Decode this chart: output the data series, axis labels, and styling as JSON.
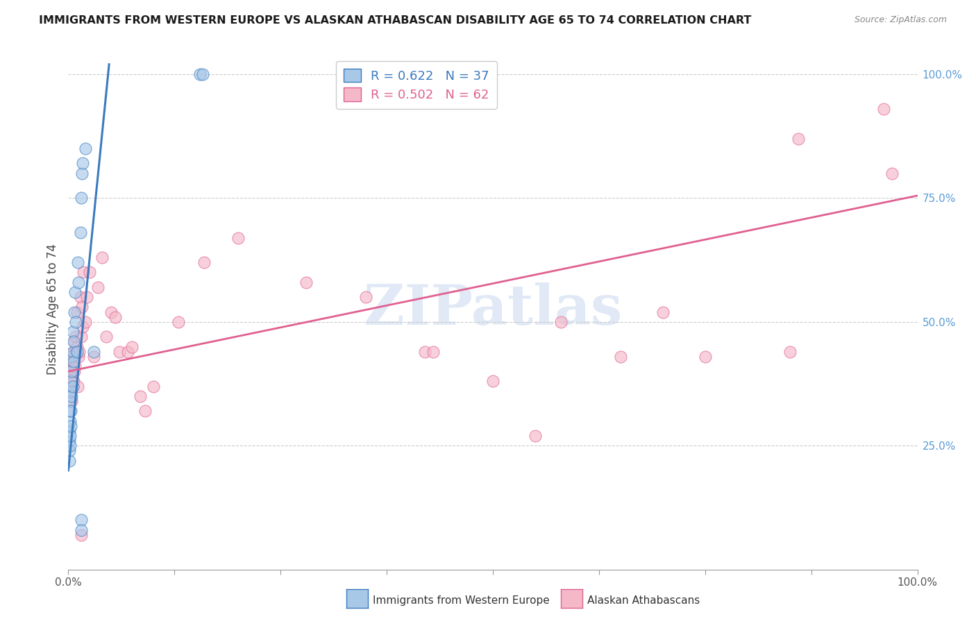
{
  "title": "IMMIGRANTS FROM WESTERN EUROPE VS ALASKAN ATHABASCAN DISABILITY AGE 65 TO 74 CORRELATION CHART",
  "source": "Source: ZipAtlas.com",
  "ylabel": "Disability Age 65 to 74",
  "legend1_label": "R = 0.622   N = 37",
  "legend2_label": "R = 0.502   N = 62",
  "legend1_fill": "#a8c8e8",
  "legend2_fill": "#f4b8c8",
  "line1_color": "#3a7abf",
  "line2_color": "#e06090",
  "watermark": "ZIPatlas",
  "blue_dots": [
    [
      0.001,
      0.22
    ],
    [
      0.001,
      0.24
    ],
    [
      0.001,
      0.26
    ],
    [
      0.001,
      0.28
    ],
    [
      0.002,
      0.25
    ],
    [
      0.002,
      0.27
    ],
    [
      0.002,
      0.3
    ],
    [
      0.002,
      0.32
    ],
    [
      0.002,
      0.34
    ],
    [
      0.003,
      0.29
    ],
    [
      0.003,
      0.32
    ],
    [
      0.003,
      0.36
    ],
    [
      0.003,
      0.38
    ],
    [
      0.004,
      0.35
    ],
    [
      0.004,
      0.4
    ],
    [
      0.004,
      0.43
    ],
    [
      0.005,
      0.37
    ],
    [
      0.005,
      0.44
    ],
    [
      0.005,
      0.48
    ],
    [
      0.006,
      0.42
    ],
    [
      0.006,
      0.46
    ],
    [
      0.007,
      0.52
    ],
    [
      0.008,
      0.56
    ],
    [
      0.009,
      0.5
    ],
    [
      0.01,
      0.44
    ],
    [
      0.011,
      0.62
    ],
    [
      0.012,
      0.58
    ],
    [
      0.014,
      0.68
    ],
    [
      0.015,
      0.75
    ],
    [
      0.016,
      0.8
    ],
    [
      0.017,
      0.82
    ],
    [
      0.02,
      0.85
    ],
    [
      0.015,
      0.1
    ],
    [
      0.015,
      0.08
    ],
    [
      0.155,
      1.0
    ],
    [
      0.158,
      1.0
    ],
    [
      0.03,
      0.44
    ]
  ],
  "pink_dots": [
    [
      0.002,
      0.38
    ],
    [
      0.002,
      0.4
    ],
    [
      0.003,
      0.36
    ],
    [
      0.003,
      0.41
    ],
    [
      0.003,
      0.43
    ],
    [
      0.004,
      0.34
    ],
    [
      0.004,
      0.39
    ],
    [
      0.004,
      0.41
    ],
    [
      0.005,
      0.37
    ],
    [
      0.005,
      0.42
    ],
    [
      0.006,
      0.38
    ],
    [
      0.006,
      0.44
    ],
    [
      0.007,
      0.4
    ],
    [
      0.007,
      0.43
    ],
    [
      0.007,
      0.46
    ],
    [
      0.008,
      0.41
    ],
    [
      0.008,
      0.44
    ],
    [
      0.009,
      0.44
    ],
    [
      0.009,
      0.47
    ],
    [
      0.01,
      0.45
    ],
    [
      0.01,
      0.52
    ],
    [
      0.011,
      0.37
    ],
    [
      0.012,
      0.43
    ],
    [
      0.013,
      0.44
    ],
    [
      0.014,
      0.55
    ],
    [
      0.015,
      0.47
    ],
    [
      0.016,
      0.53
    ],
    [
      0.017,
      0.49
    ],
    [
      0.018,
      0.6
    ],
    [
      0.02,
      0.5
    ],
    [
      0.022,
      0.55
    ],
    [
      0.025,
      0.6
    ],
    [
      0.03,
      0.43
    ],
    [
      0.035,
      0.57
    ],
    [
      0.04,
      0.63
    ],
    [
      0.045,
      0.47
    ],
    [
      0.05,
      0.52
    ],
    [
      0.055,
      0.51
    ],
    [
      0.06,
      0.44
    ],
    [
      0.07,
      0.44
    ],
    [
      0.075,
      0.45
    ],
    [
      0.085,
      0.35
    ],
    [
      0.09,
      0.32
    ],
    [
      0.1,
      0.37
    ],
    [
      0.13,
      0.5
    ],
    [
      0.16,
      0.62
    ],
    [
      0.2,
      0.67
    ],
    [
      0.28,
      0.58
    ],
    [
      0.35,
      0.55
    ],
    [
      0.42,
      0.44
    ],
    [
      0.43,
      0.44
    ],
    [
      0.5,
      0.38
    ],
    [
      0.55,
      0.27
    ],
    [
      0.58,
      0.5
    ],
    [
      0.65,
      0.43
    ],
    [
      0.7,
      0.52
    ],
    [
      0.75,
      0.43
    ],
    [
      0.85,
      0.44
    ],
    [
      0.86,
      0.87
    ],
    [
      0.96,
      0.93
    ],
    [
      0.97,
      0.8
    ],
    [
      0.015,
      0.07
    ]
  ],
  "blue_line_x": [
    0.0,
    0.048
  ],
  "blue_line_y": [
    0.2,
    1.02
  ],
  "pink_line_x": [
    0.0,
    1.0
  ],
  "pink_line_y": [
    0.4,
    0.755
  ],
  "xlim": [
    0.0,
    1.0
  ],
  "ylim": [
    0.0,
    1.05
  ],
  "yticks": [
    0.25,
    0.5,
    0.75,
    1.0
  ],
  "ytick_labels": [
    "25.0%",
    "50.0%",
    "75.0%",
    "100.0%"
  ],
  "xtick_positions": [
    0.0,
    0.125,
    0.25,
    0.375,
    0.5,
    0.625,
    0.75,
    0.875,
    1.0
  ],
  "xtick_edge_labels": [
    "0.0%",
    "",
    "",
    "",
    "",
    "",
    "",
    "",
    "100.0%"
  ]
}
